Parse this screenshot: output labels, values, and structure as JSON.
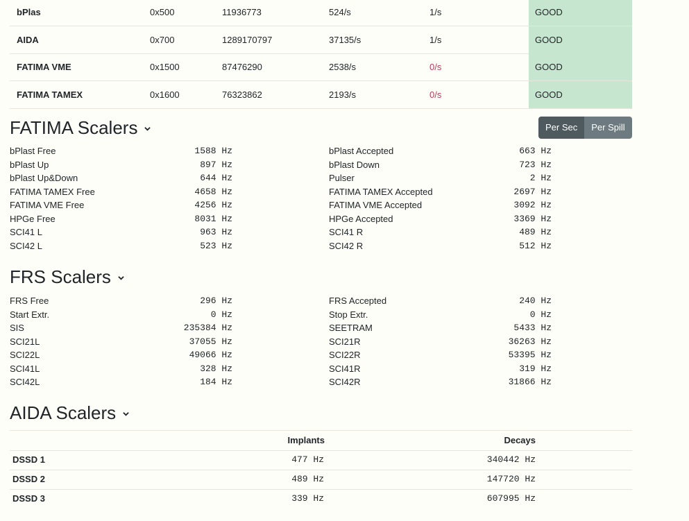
{
  "status_rows": [
    {
      "name": "bPlas",
      "addr": "0x500",
      "count": "11936773",
      "rate": "524/s",
      "spill": "1/s",
      "spill_bad": false,
      "state": "GOOD"
    },
    {
      "name": "AIDA",
      "addr": "0x700",
      "count": "1289170797",
      "rate": "37135/s",
      "spill": "1/s",
      "spill_bad": false,
      "state": "GOOD"
    },
    {
      "name": "FATIMA VME",
      "addr": "0x1500",
      "count": "87476290",
      "rate": "2538/s",
      "spill": "0/s",
      "spill_bad": true,
      "state": "GOOD"
    },
    {
      "name": "FATIMA TAMEX",
      "addr": "0x1600",
      "count": "76323862",
      "rate": "2193/s",
      "spill": "0/s",
      "spill_bad": true,
      "state": "GOOD"
    }
  ],
  "toggle": {
    "per_sec": "Per Sec",
    "per_spill": "Per Spill"
  },
  "fatima": {
    "title": "FATIMA Scalers",
    "left": [
      {
        "label": "bPlast Free",
        "value": "1588 Hz"
      },
      {
        "label": "bPlast Up",
        "value": "897 Hz"
      },
      {
        "label": "bPlast Up&Down",
        "value": "644 Hz"
      },
      {
        "label": "FATIMA TAMEX Free",
        "value": "4658 Hz"
      },
      {
        "label": "FATIMA VME Free",
        "value": "4256 Hz"
      },
      {
        "label": "HPGe Free",
        "value": "8031 Hz"
      },
      {
        "label": "SCI41 L",
        "value": "963 Hz"
      },
      {
        "label": "SCI42 L",
        "value": "523 Hz"
      }
    ],
    "right": [
      {
        "label": "bPlast Accepted",
        "value": "663 Hz"
      },
      {
        "label": "bPlast Down",
        "value": "723 Hz"
      },
      {
        "label": "Pulser",
        "value": "2 Hz"
      },
      {
        "label": "FATIMA TAMEX Accepted",
        "value": "2697 Hz"
      },
      {
        "label": "FATIMA VME Accepted",
        "value": "3092 Hz"
      },
      {
        "label": "HPGe Accepted",
        "value": "3369 Hz"
      },
      {
        "label": "SCI41 R",
        "value": "489 Hz"
      },
      {
        "label": "SCI42 R",
        "value": "512 Hz"
      }
    ]
  },
  "frs": {
    "title": "FRS Scalers",
    "left": [
      {
        "label": "FRS Free",
        "value": "296 Hz"
      },
      {
        "label": "Start Extr.",
        "value": "0 Hz"
      },
      {
        "label": "SIS",
        "value": "235384 Hz"
      },
      {
        "label": "SCI21L",
        "value": "37055 Hz"
      },
      {
        "label": "SCI22L",
        "value": "49066 Hz"
      },
      {
        "label": "SCI41L",
        "value": "328 Hz"
      },
      {
        "label": "SCI42L",
        "value": "184 Hz"
      }
    ],
    "right": [
      {
        "label": "FRS Accepted",
        "value": "240 Hz"
      },
      {
        "label": "Stop Extr.",
        "value": "0 Hz"
      },
      {
        "label": "SEETRAM",
        "value": "5433 Hz"
      },
      {
        "label": "SCI21R",
        "value": "36263 Hz"
      },
      {
        "label": "SCI22R",
        "value": "53395 Hz"
      },
      {
        "label": "SCI41R",
        "value": "319 Hz"
      },
      {
        "label": "SCI42R",
        "value": "31866 Hz"
      }
    ]
  },
  "aida": {
    "title": "AIDA Scalers",
    "col_implants": "Implants",
    "col_decays": "Decays",
    "rows": [
      {
        "name": "DSSD 1",
        "implants": "477 Hz",
        "decays": "340442 Hz"
      },
      {
        "name": "DSSD 2",
        "implants": "489 Hz",
        "decays": "147720 Hz"
      },
      {
        "name": "DSSD 3",
        "implants": "339 Hz",
        "decays": "607995 Hz"
      }
    ]
  }
}
